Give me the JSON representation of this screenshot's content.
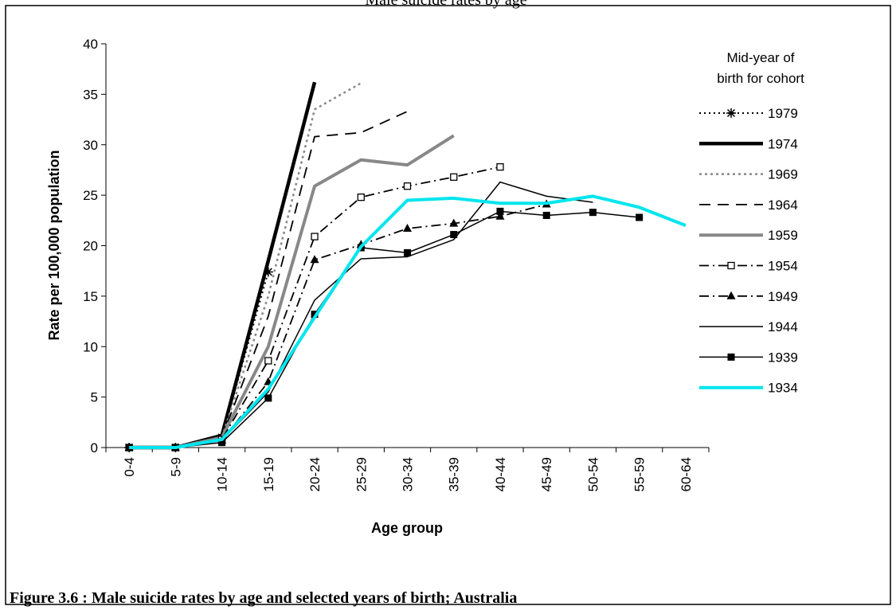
{
  "chart_data": {
    "type": "line",
    "title": "Male suicide rates by age",
    "caption": "Figure 3.6 : Male suicide rates by age and selected years of birth; Australia",
    "x_label": "Age group",
    "y_label": "Rate per 100,000 population",
    "legend_title": [
      "Mid-year of",
      "birth for cohort"
    ],
    "categories": [
      "0-4",
      "5-9",
      "10-14",
      "15-19",
      "20-24",
      "25-29",
      "30-34",
      "35-39",
      "40-44",
      "45-49",
      "50-54",
      "55-59",
      "60-64"
    ],
    "ylim": [
      0,
      40
    ],
    "yticks": [
      0,
      5,
      10,
      15,
      20,
      25,
      30,
      35,
      40
    ],
    "series": [
      {
        "name": "1979",
        "color": "#000000",
        "width": 2,
        "dash": "2,4",
        "marker": "star",
        "values": [
          0,
          0,
          1,
          17.4,
          null,
          null,
          null,
          null,
          null,
          null,
          null,
          null,
          null
        ]
      },
      {
        "name": "1974",
        "color": "#000000",
        "width": 4.5,
        "dash": "none",
        "marker": "none",
        "values": [
          0,
          0,
          1.2,
          18.5,
          36.2,
          null,
          null,
          null,
          null,
          null,
          null,
          null,
          null
        ]
      },
      {
        "name": "1969",
        "color": "#888888",
        "width": 2.5,
        "dash": "3,4",
        "marker": "none",
        "values": [
          0,
          0,
          1,
          15,
          33.5,
          36.1,
          null,
          null,
          null,
          null,
          null,
          null,
          null
        ]
      },
      {
        "name": "1964",
        "color": "#000000",
        "width": 1.8,
        "dash": "14,9",
        "marker": "none",
        "values": [
          0,
          0,
          1,
          13,
          30.8,
          31.2,
          33.3,
          null,
          null,
          null,
          null,
          null,
          null
        ]
      },
      {
        "name": "1959",
        "color": "#888888",
        "width": 4,
        "dash": "none",
        "marker": "none",
        "values": [
          0,
          0,
          1,
          10,
          25.9,
          28.5,
          28.0,
          30.9,
          null,
          null,
          null,
          null,
          null
        ]
      },
      {
        "name": "1954",
        "color": "#000000",
        "width": 1.8,
        "dash": "12,5,2,5",
        "marker": "open-square",
        "values": [
          0,
          0,
          0.8,
          8.6,
          20.9,
          24.8,
          25.9,
          26.8,
          27.8,
          null,
          null,
          null,
          null
        ]
      },
      {
        "name": "1949",
        "color": "#000000",
        "width": 1.8,
        "dash": "12,5,2,5",
        "marker": "triangle",
        "values": [
          0,
          0,
          0.7,
          6.5,
          18.6,
          20.1,
          21.7,
          22.2,
          22.9,
          24.1,
          null,
          null,
          null
        ]
      },
      {
        "name": "1944",
        "color": "#000000",
        "width": 1.5,
        "dash": "none",
        "marker": "none",
        "values": [
          0,
          0,
          0.7,
          5.5,
          14.6,
          18.7,
          18.9,
          20.6,
          26.3,
          24.9,
          24.3,
          null,
          null
        ]
      },
      {
        "name": "1939",
        "color": "#000000",
        "width": 1.5,
        "dash": "none",
        "marker": "square",
        "values": [
          0,
          0,
          0.5,
          4.9,
          13.2,
          19.8,
          19.3,
          21.1,
          23.4,
          23.0,
          23.3,
          22.8,
          null
        ]
      },
      {
        "name": "1934",
        "color": "#00e5ee",
        "width": 4,
        "dash": "none",
        "marker": "none",
        "values": [
          0,
          0,
          0.8,
          5.8,
          12.9,
          19.9,
          24.5,
          24.7,
          24.2,
          24.2,
          24.9,
          23.8,
          22.0
        ]
      }
    ]
  }
}
